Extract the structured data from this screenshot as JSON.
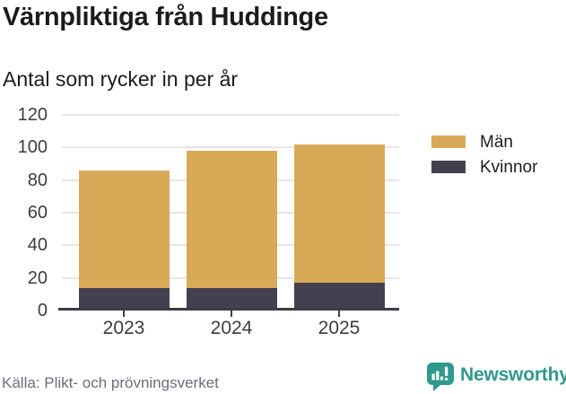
{
  "header": {
    "title": "Värnpliktiga från Huddinge",
    "subtitle": "Antal som rycker in per år"
  },
  "chart_data": {
    "type": "bar",
    "stacked": true,
    "title": "Värnpliktiga från Huddinge",
    "subtitle": "Antal som rycker in per år",
    "xlabel": "",
    "ylabel": "",
    "categories": [
      "2023",
      "2024",
      "2025"
    ],
    "series": [
      {
        "name": "Män",
        "color": "#d8aa58",
        "values": [
          72,
          84,
          85
        ]
      },
      {
        "name": "Kvinnor",
        "color": "#434050",
        "values": [
          14,
          14,
          17
        ]
      }
    ],
    "stack_order_bottom_to_top": [
      "Kvinnor",
      "Män"
    ],
    "totals": [
      86,
      98,
      102
    ],
    "ylim": [
      0,
      120
    ],
    "yticks": [
      0,
      20,
      40,
      60,
      80,
      100,
      120
    ],
    "grid": true,
    "legend_position": "right"
  },
  "legend": {
    "items": [
      {
        "label": "Män",
        "color": "#d8aa58"
      },
      {
        "label": "Kvinnor",
        "color": "#434050"
      }
    ]
  },
  "footer": {
    "source": "Källa: Plikt- och prövningsverket",
    "brand": "Newsworthy"
  },
  "colors": {
    "man": "#d8aa58",
    "kvinnor": "#434050",
    "accent_teal": "#2e998d",
    "gridline": "#e6e6e6",
    "axis": "#3e3c49",
    "tick_label": "#3d3d3d",
    "source_text": "#6d6d77"
  }
}
